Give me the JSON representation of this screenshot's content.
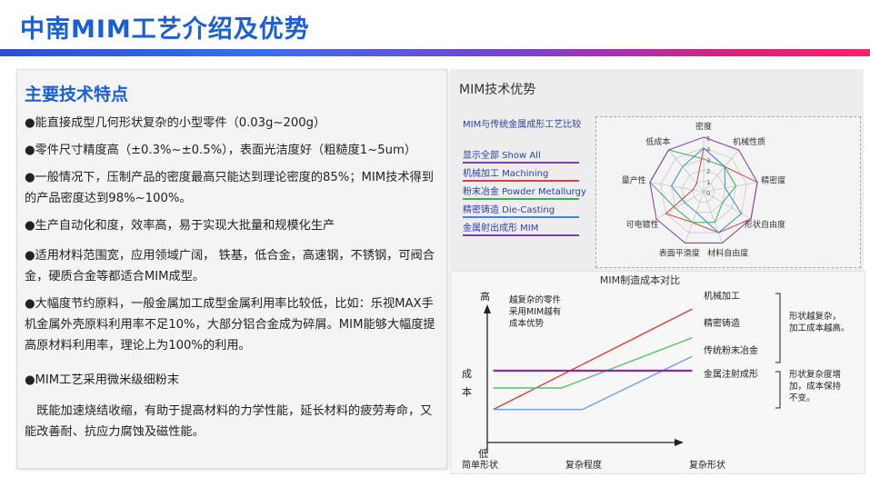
{
  "header": {
    "title": "中南MIM工艺介绍及优势"
  },
  "left": {
    "heading": "主要技术特点",
    "bullets": [
      "●能直接成型几何形状复杂的小型零件（0.03g~200g）",
      "●零件尺寸精度高（±0.3%~±0.5%），表面光洁度好（粗糙度1~5um）",
      "●一般情况下，压制产品的密度最高只能达到理论密度的85%；MIM技术得到的产品密度达到98%~100%。",
      "●生产自动化和度，效率高，易于实现大批量和规模化生产",
      "●适用材料范围宽，应用领域广阔， 铁基，低合金，高速钢，不锈钢，可阀合金，硬质合金等都适合MIM成型。",
      "●大幅度节约原料，一般金属加工成型金属利用率比较低，比如：乐视MAX手机金属外壳原料利用率不足10%，大部分铝合金成为碎屑。MIM能够大幅度提高原材料利用率，理论上为100%的利用。",
      "●MIM工艺采用微米级细粉末",
      "　既能加速烧结收缩，有助于提高材料的力学性能，延长材料的疲劳寿命，又能改善耐、抗应力腐蚀及磁性能。"
    ]
  },
  "radar_panel": {
    "title": "MIM技术优势",
    "subtitle": "MIM与传统金属成形工艺比较",
    "legend": [
      {
        "label": "显示全部  Show All",
        "color": "#7b3fa8"
      },
      {
        "label": "机械加工  Machining",
        "color": "#d84040"
      },
      {
        "label": "粉末冶金  Powder Metallurgy",
        "color": "#3cae5a"
      },
      {
        "label": "精密铸造  Die-Casting",
        "color": "#3a8ad8"
      },
      {
        "label": "金属射出成形  MIM",
        "color": "#7b3fa8"
      }
    ],
    "axes": [
      "密度",
      "机械性质",
      "精密度",
      "形状自由度",
      "材料自由度",
      "表面平滑度",
      "可电镀性",
      "量产性",
      "低成本"
    ],
    "scale_labels": [
      "5",
      "4",
      "3",
      "2",
      "1",
      "0"
    ]
  },
  "chart_data": {
    "type": "line",
    "title": "MIM制造成本对比",
    "xlabel": "复杂程度",
    "x_start_label": "简单形状",
    "x_end_label": "复杂形状",
    "ylabel": "成本",
    "y_high_label": "高",
    "y_low_label": "低",
    "annotation": "越复杂的零件\n采用MIM越有\n成本优势",
    "series": [
      {
        "name": "机械加工",
        "color": "#e03a3a",
        "points": [
          [
            0.02,
            0.23
          ],
          [
            0.98,
            0.93
          ]
        ]
      },
      {
        "name": "精密铸造",
        "color": "#56c46a",
        "points": [
          [
            0.02,
            0.38
          ],
          [
            0.35,
            0.38
          ],
          [
            0.98,
            0.73
          ]
        ]
      },
      {
        "name": "传统粉末冶金",
        "color": "#6aa0e0",
        "points": [
          [
            0.02,
            0.23
          ],
          [
            0.45,
            0.23
          ],
          [
            0.98,
            0.6
          ]
        ]
      },
      {
        "name": "金属注射成形",
        "color": "#8a2d9a",
        "points": [
          [
            0.02,
            0.5
          ],
          [
            0.98,
            0.5
          ]
        ]
      }
    ],
    "bracket_notes": [
      "形状越复杂，\n加工成本越高。",
      "形状复杂度增\n加，成本保持\n不变。"
    ]
  }
}
